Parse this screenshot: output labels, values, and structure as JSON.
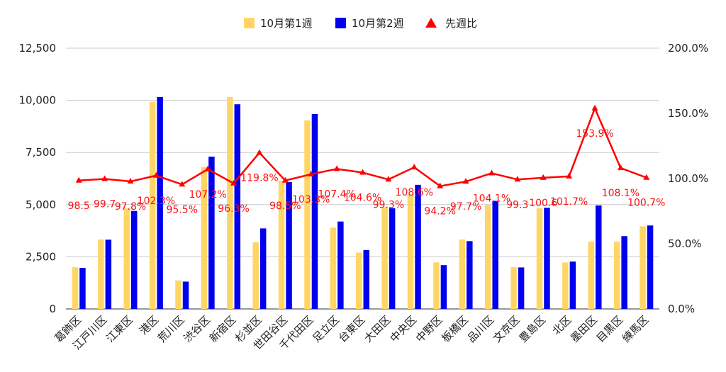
{
  "chart_data": {
    "type": "bar",
    "categories": [
      "葛飾区",
      "江戸川区",
      "江東区",
      "港区",
      "荒川区",
      "渋谷区",
      "新宿区",
      "杉並区",
      "世田谷区",
      "千代田区",
      "足立区",
      "台東区",
      "大田区",
      "中央区",
      "中野区",
      "板橋区",
      "品川区",
      "文京区",
      "豊島区",
      "北区",
      "墨田区",
      "目黒区",
      "練馬区"
    ],
    "series": [
      {
        "name": "10月第1週",
        "type": "bar",
        "axis": "left",
        "color": "#ffd666",
        "values": [
          2000,
          3330,
          4820,
          9930,
          1370,
          6800,
          10160,
          3190,
          6150,
          9040,
          3900,
          2700,
          4880,
          5480,
          2230,
          3330,
          4980,
          2000,
          4820,
          2230,
          3230,
          3230,
          3960
        ]
      },
      {
        "name": "10月第2週",
        "type": "bar",
        "axis": "left",
        "color": "#0000ee",
        "values": [
          1970,
          3320,
          4700,
          10160,
          1310,
          7300,
          9810,
          3860,
          6080,
          9340,
          4190,
          2820,
          4830,
          5950,
          2100,
          3250,
          5180,
          1990,
          4850,
          2270,
          4960,
          3490,
          4000
        ]
      },
      {
        "name": "先週比",
        "type": "line",
        "axis": "right",
        "color": "#ff0000",
        "values": [
          98.5,
          99.7,
          97.8,
          102.3,
          95.5,
          107.2,
          96.3,
          119.8,
          98.5,
          103.3,
          107.4,
          104.6,
          99.3,
          108.6,
          94.2,
          97.7,
          104.1,
          99.3,
          100.6,
          101.7,
          153.9,
          108.1,
          100.7
        ],
        "labels": [
          "98.5",
          "99.7",
          "97.8%",
          "102.3%",
          "95.5%",
          "107.2%",
          "96.3%",
          "119.8%",
          "98.5%",
          "103.3%",
          "107.4%",
          "104.6%",
          "99.3%",
          "108.6%",
          "94.2%",
          "97.7%",
          "104.1%",
          "99.3",
          "100.6",
          "101.7%",
          "153.9%",
          "108.1%",
          "100.7%"
        ]
      }
    ],
    "y_left": {
      "min": 0,
      "max": 12500,
      "ticks": [
        "0",
        "2,500",
        "5,000",
        "7,500",
        "10,000",
        "12,500"
      ]
    },
    "y_right": {
      "min": 0,
      "max": 200,
      "ticks": [
        "0.0%",
        "50.0%",
        "100.0%",
        "150.0%",
        "200.0%"
      ]
    },
    "grid": true,
    "legend_position": "top-center"
  }
}
